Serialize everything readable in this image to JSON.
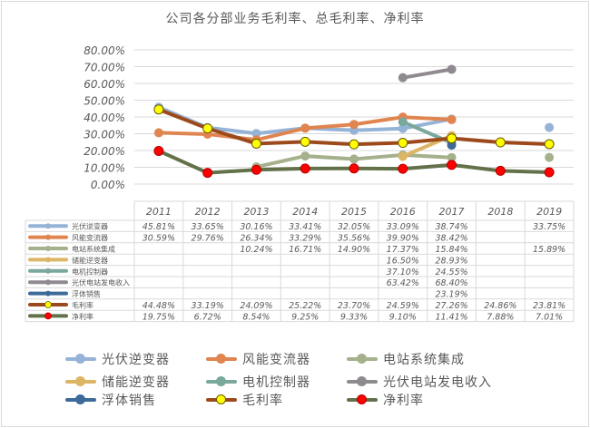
{
  "chart_data": {
    "type": "line",
    "title": "公司各分部业务毛利率、总毛利率、净利率",
    "xlabel": "",
    "ylabel": "",
    "ylim": [
      0,
      0.8
    ],
    "y_ticks": [
      "0.00%",
      "10.00%",
      "20.00%",
      "30.00%",
      "40.00%",
      "50.00%",
      "60.00%",
      "70.00%",
      "80.00%"
    ],
    "grid": true,
    "legend_position": "bottom",
    "data_table": true,
    "categories": [
      "2011",
      "2012",
      "2013",
      "2014",
      "2015",
      "2016",
      "2017",
      "2018",
      "2019"
    ],
    "series": [
      {
        "name": "光伏逆变器",
        "color": "#95b3d7",
        "marker": "#95b3d7",
        "marker_border": "#95b3d7",
        "values": [
          0.4581,
          0.3365,
          0.3016,
          0.3341,
          0.3205,
          0.3309,
          0.3874,
          null,
          0.3375
        ],
        "labels": [
          "45.81%",
          "33.65%",
          "30.16%",
          "33.41%",
          "32.05%",
          "33.09%",
          "38.74%",
          "",
          "33.75%"
        ]
      },
      {
        "name": "风能变流器",
        "color": "#e0854f",
        "marker": "#e0854f",
        "marker_border": "#e0854f",
        "values": [
          0.3059,
          0.2976,
          0.2634,
          0.3329,
          0.3556,
          0.399,
          0.3842,
          null,
          null
        ],
        "labels": [
          "30.59%",
          "29.76%",
          "26.34%",
          "33.29%",
          "35.56%",
          "39.90%",
          "38.42%",
          "",
          ""
        ]
      },
      {
        "name": "电站系统集成",
        "color": "#a5b08c",
        "marker": "#a5b08c",
        "marker_border": "#a5b08c",
        "values": [
          null,
          null,
          0.1024,
          0.1671,
          0.149,
          0.1737,
          0.1584,
          null,
          0.1589
        ],
        "labels": [
          "",
          "",
          "10.24%",
          "16.71%",
          "14.90%",
          "17.37%",
          "15.84%",
          "",
          "15.89%"
        ]
      },
      {
        "name": "储能逆变器",
        "color": "#dcb565",
        "marker": "#dcb565",
        "marker_border": "#dcb565",
        "values": [
          null,
          null,
          null,
          null,
          null,
          0.165,
          0.2893,
          null,
          null
        ],
        "labels": [
          "",
          "",
          "",
          "",
          "",
          "16.50%",
          "28.93%",
          "",
          ""
        ]
      },
      {
        "name": "电机控制器",
        "color": "#7aa89c",
        "marker": "#7aa89c",
        "marker_border": "#7aa89c",
        "values": [
          null,
          null,
          null,
          null,
          null,
          0.371,
          0.2455,
          null,
          null
        ],
        "labels": [
          "",
          "",
          "",
          "",
          "",
          "37.10%",
          "24.55%",
          "",
          ""
        ]
      },
      {
        "name": "光伏电站发电收入",
        "color": "#8f8a8f",
        "marker": "#8f8a8f",
        "marker_border": "#8f8a8f",
        "values": [
          null,
          null,
          null,
          null,
          null,
          0.6342,
          0.684,
          null,
          null
        ],
        "labels": [
          "",
          "",
          "",
          "",
          "",
          "63.42%",
          "68.40%",
          "",
          ""
        ]
      },
      {
        "name": "浮体销售",
        "color": "#3d6a99",
        "marker": "#3d6a99",
        "marker_border": "#3d6a99",
        "values": [
          null,
          null,
          null,
          null,
          null,
          null,
          0.2319,
          null,
          null
        ],
        "labels": [
          "",
          "",
          "",
          "",
          "",
          "",
          "23.19%",
          "",
          ""
        ]
      },
      {
        "name": "毛利率",
        "color": "#9c4a1c",
        "marker": "#ffff00",
        "marker_border": "#6b5a00",
        "values": [
          0.4448,
          0.3319,
          0.2409,
          0.2522,
          0.237,
          0.2459,
          0.2726,
          0.2486,
          0.2381
        ],
        "labels": [
          "44.48%",
          "33.19%",
          "24.09%",
          "25.22%",
          "23.70%",
          "24.59%",
          "27.26%",
          "24.86%",
          "23.81%"
        ]
      },
      {
        "name": "净利率",
        "color": "#62714a",
        "marker": "#ff0000",
        "marker_border": "#b30000",
        "values": [
          0.1975,
          0.0672,
          0.0854,
          0.0925,
          0.0933,
          0.091,
          0.1141,
          0.0788,
          0.0701
        ],
        "labels": [
          "19.75%",
          "6.72%",
          "8.54%",
          "9.25%",
          "9.33%",
          "9.10%",
          "11.41%",
          "7.88%",
          "7.01%"
        ]
      }
    ]
  }
}
